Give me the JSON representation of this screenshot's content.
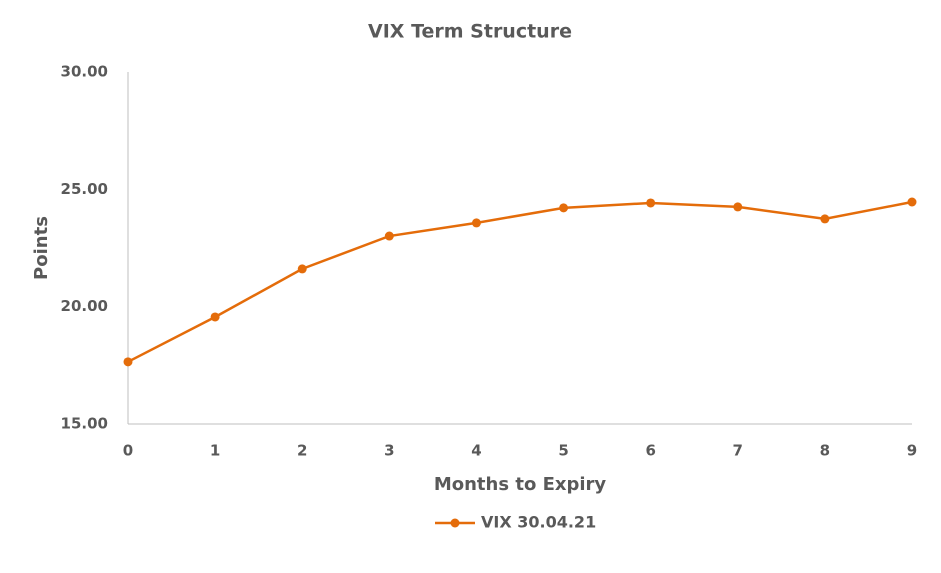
{
  "chart_data": {
    "type": "line",
    "title": "VIX Term Structure",
    "x_label": "Months to Expiry",
    "y_label": "Points",
    "x": [
      0,
      1,
      2,
      3,
      4,
      5,
      6,
      7,
      8,
      9
    ],
    "series": [
      {
        "name": "VIX 30.04.21",
        "color": "#e46c0a",
        "values": [
          17.65,
          19.56,
          21.61,
          23.01,
          23.57,
          24.21,
          24.42,
          24.25,
          23.74,
          24.46
        ]
      }
    ],
    "xlim": [
      0,
      9
    ],
    "xticks": [
      0,
      1,
      2,
      3,
      4,
      5,
      6,
      7,
      8,
      9
    ],
    "ylim": [
      15,
      30
    ],
    "yticks": [
      {
        "value": 15,
        "label": "15.00"
      },
      {
        "value": 20,
        "label": "20.00"
      },
      {
        "value": 25,
        "label": "25.00"
      },
      {
        "value": 30,
        "label": "30.00"
      }
    ],
    "grid": false,
    "legend": "bottom"
  }
}
